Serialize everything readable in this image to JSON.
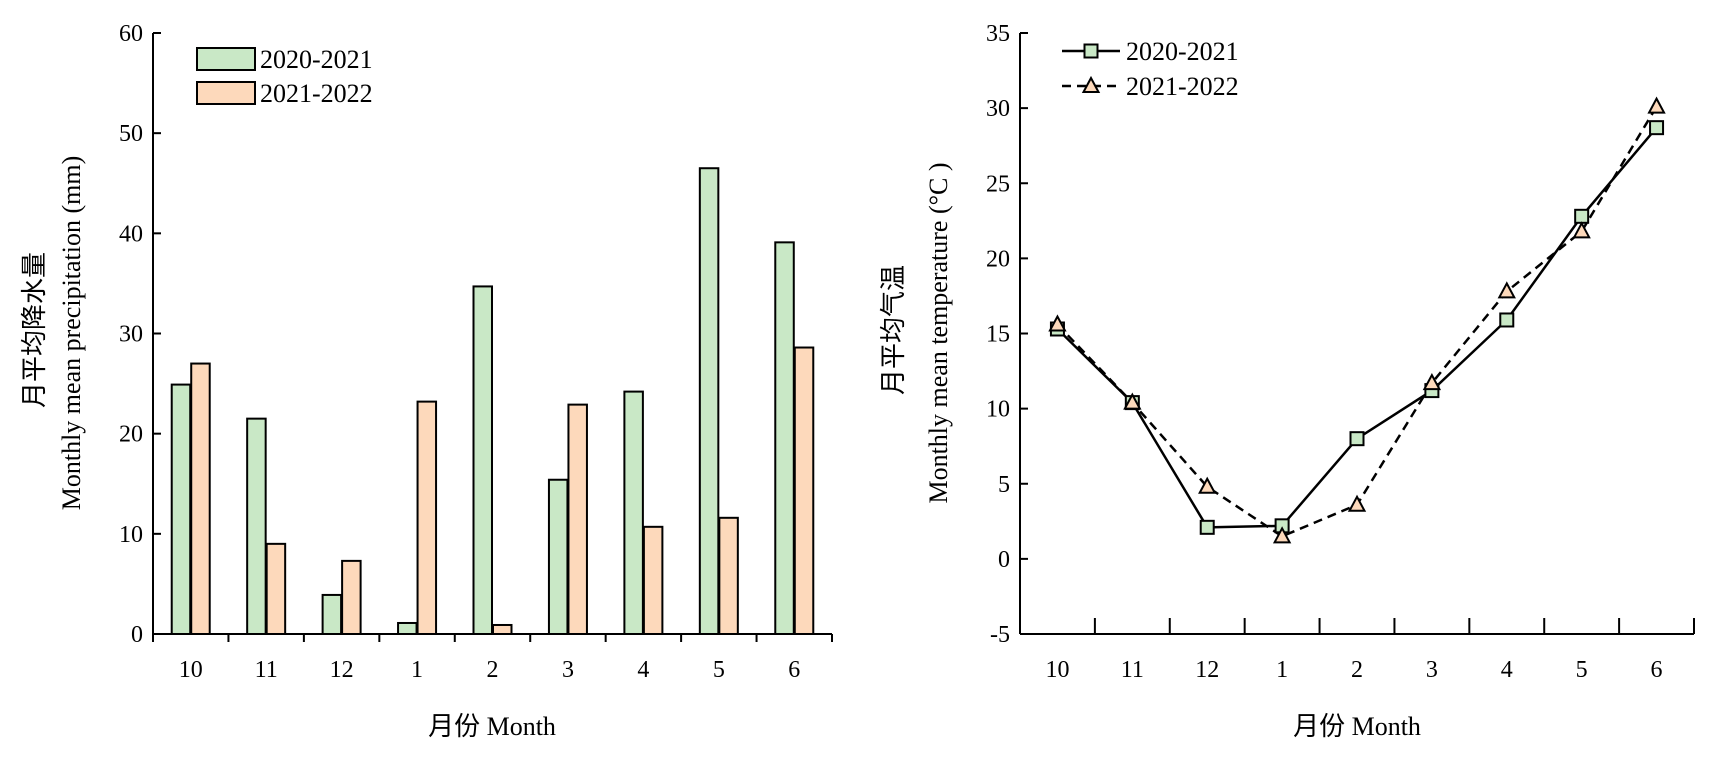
{
  "chart_data": [
    {
      "type": "bar",
      "title": "",
      "xlabel": "月份 Month",
      "ylabel": [
        "月平均降水量",
        "Monthly mean precipitation (mm)"
      ],
      "categories": [
        "10",
        "11",
        "12",
        "1",
        "2",
        "3",
        "4",
        "5",
        "6"
      ],
      "ylim": [
        0,
        60
      ],
      "yticks": [
        0,
        10,
        20,
        30,
        40,
        50,
        60
      ],
      "grid": false,
      "legend": "top-left",
      "series": [
        {
          "name": "2020-2021",
          "color": "#c9e8c6",
          "values": [
            24.9,
            21.5,
            3.9,
            1.1,
            34.7,
            15.4,
            24.2,
            46.5,
            39.1
          ]
        },
        {
          "name": "2021-2022",
          "color": "#fdd9bb",
          "values": [
            27.0,
            9.0,
            7.3,
            23.2,
            0.9,
            22.9,
            10.7,
            11.6,
            28.6
          ]
        }
      ]
    },
    {
      "type": "line",
      "title": "",
      "xlabel": "月份 Month",
      "ylabel": [
        "月平均气温",
        "Monthly mean temperature (°C )"
      ],
      "categories": [
        "10",
        "11",
        "12",
        "1",
        "2",
        "3",
        "4",
        "5",
        "6"
      ],
      "ylim": [
        -5,
        35
      ],
      "yticks": [
        -5,
        0,
        5,
        10,
        15,
        20,
        25,
        30,
        35
      ],
      "grid": false,
      "legend": "top-left",
      "series": [
        {
          "name": "2020-2021",
          "marker": "square",
          "line": "solid",
          "color": "#c9e8c6",
          "values": [
            15.3,
            10.4,
            2.1,
            2.2,
            8.0,
            11.2,
            15.9,
            22.8,
            28.7
          ]
        },
        {
          "name": "2021-2022",
          "marker": "triangle",
          "line": "dashed",
          "color": "#fdd9bb",
          "values": [
            15.6,
            10.4,
            4.8,
            1.5,
            3.6,
            11.7,
            17.8,
            21.8,
            30.1
          ]
        }
      ]
    }
  ]
}
